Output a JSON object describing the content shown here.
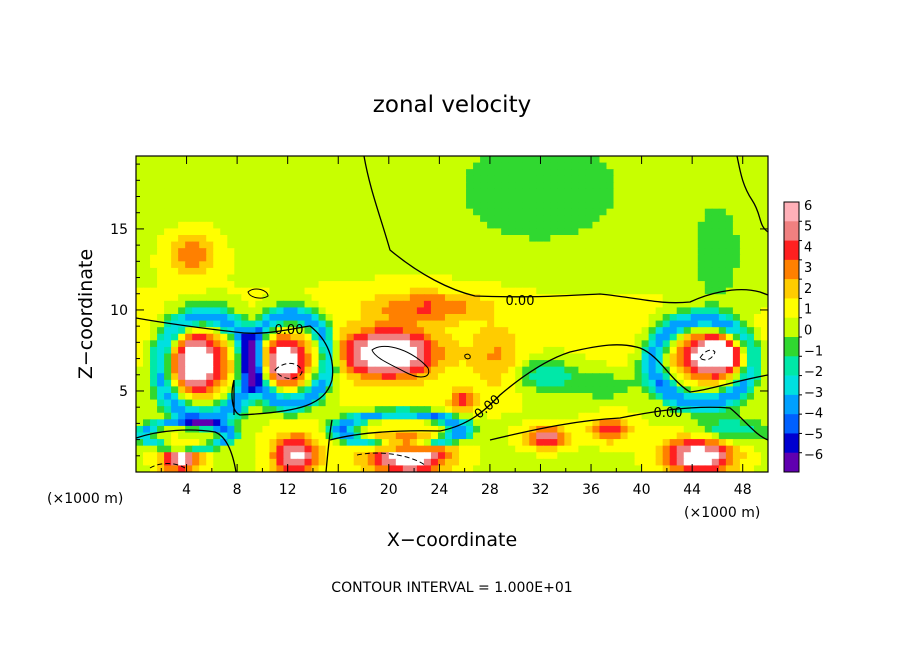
{
  "chart_data": {
    "type": "heatmap",
    "title": "zonal velocity",
    "xlabel": "X−coordinate",
    "ylabel": "Z−coordinate",
    "x_unit_left": "(×1000 m)",
    "x_unit_right": "(×1000 m)",
    "xlim": [
      0,
      50
    ],
    "ylim": [
      0,
      19.5
    ],
    "x_ticks": [
      "4",
      "8",
      "12",
      "16",
      "20",
      "24",
      "28",
      "32",
      "36",
      "40",
      "44",
      "48"
    ],
    "y_ticks": [
      "5",
      "10",
      "15"
    ],
    "footnote": "CONTOUR INTERVAL = 1.000E+01",
    "contour_labels": [
      "0.00",
      "0.00",
      "0.00",
      "0.00"
    ],
    "colorbar": {
      "ticks": [
        "6",
        "5",
        "4",
        "3",
        "2",
        "1",
        "0",
        "−1",
        "−2",
        "−3",
        "−4",
        "−5",
        "−6"
      ],
      "colors": [
        "#ffb0b8",
        "#f08080",
        "#ff2020",
        "#ff8000",
        "#ffcc00",
        "#ffff00",
        "#c8ff00",
        "#30d830",
        "#00e8a8",
        "#00e0e0",
        "#00a0ff",
        "#0060ff",
        "#0000d0",
        "#6000b0"
      ]
    },
    "features": [
      {
        "kind": "positive-core",
        "x": 4.8,
        "z": 6.7,
        "rx": 2.6,
        "rz": 2.4,
        "amp": 7
      },
      {
        "kind": "positive-core",
        "x": 20.0,
        "z": 7.3,
        "rx": 4.5,
        "rz": 1.8,
        "amp": 8
      },
      {
        "kind": "positive-core",
        "x": 45.8,
        "z": 7.2,
        "rx": 3.2,
        "rz": 1.7,
        "amp": 8
      },
      {
        "kind": "positive-core",
        "x": 12.6,
        "z": 1.0,
        "rx": 2.3,
        "rz": 1.6,
        "amp": 6
      },
      {
        "kind": "positive-core",
        "x": 21.5,
        "z": 1.0,
        "rx": 4.0,
        "rz": 1.5,
        "amp": 7
      },
      {
        "kind": "positive-core",
        "x": 44.5,
        "z": 1.0,
        "rx": 3.5,
        "rz": 1.4,
        "amp": 7
      },
      {
        "kind": "positive-core",
        "x": 3.5,
        "z": 0.8,
        "rx": 2.0,
        "rz": 1.0,
        "amp": 6
      },
      {
        "kind": "positive-core",
        "x": 11.8,
        "z": 6.8,
        "rx": 2.0,
        "rz": 1.8,
        "amp": 7
      },
      {
        "kind": "negative-ring",
        "x": 5.5,
        "z": 6.5,
        "rx": 4.2,
        "rz": 3.7,
        "amp": -5
      },
      {
        "kind": "negative-ring",
        "x": 12.2,
        "z": 7.0,
        "rx": 3.6,
        "rz": 3.2,
        "amp": -5
      },
      {
        "kind": "negative-ring",
        "x": 44.8,
        "z": 6.8,
        "rx": 4.6,
        "rz": 3.0,
        "amp": -5
      },
      {
        "kind": "negative-ring",
        "x": 21.0,
        "z": 2.6,
        "rx": 5.5,
        "rz": 1.2,
        "amp": -5
      },
      {
        "kind": "negative-ring",
        "x": 4.0,
        "z": 2.3,
        "rx": 4.0,
        "rz": 1.0,
        "amp": -4
      },
      {
        "kind": "positive-core",
        "x": 32.5,
        "z": 2.1,
        "rx": 2.0,
        "rz": 0.8,
        "amp": 5
      },
      {
        "kind": "positive-core",
        "x": 37.5,
        "z": 2.6,
        "rx": 2.0,
        "rz": 0.9,
        "amp": 4
      },
      {
        "kind": "positive-core",
        "x": 25.8,
        "z": 4.4,
        "rx": 1.2,
        "rz": 0.8,
        "amp": 4
      },
      {
        "kind": "positive-band",
        "x": 4.5,
        "z": 13.5,
        "rx": 2.2,
        "rz": 1.6,
        "amp": 3
      },
      {
        "kind": "positive-band",
        "x": 23.0,
        "z": 10.2,
        "rx": 6.0,
        "rz": 1.2,
        "amp": 3
      },
      {
        "kind": "positive-band",
        "x": 28.5,
        "z": 7.0,
        "rx": 2.5,
        "rz": 2.5,
        "amp": 2
      },
      {
        "kind": "negative-band",
        "x": 32.5,
        "z": 6.0,
        "rx": 3.0,
        "rz": 1.2,
        "amp": -3
      },
      {
        "kind": "negative-band",
        "x": 37.0,
        "z": 5.3,
        "rx": 3.5,
        "rz": 1.0,
        "amp": -2
      },
      {
        "kind": "negative-band",
        "x": 47.0,
        "z": 2.6,
        "rx": 3.5,
        "rz": 1.0,
        "amp": -3
      },
      {
        "kind": "negative-band",
        "x": 32.0,
        "z": 17.0,
        "rx": 8.0,
        "rz": 4.0,
        "amp": -1.6
      },
      {
        "kind": "negative-band",
        "x": 46.0,
        "z": 13.0,
        "rx": 3.0,
        "rz": 5.0,
        "amp": -1.4
      }
    ]
  }
}
